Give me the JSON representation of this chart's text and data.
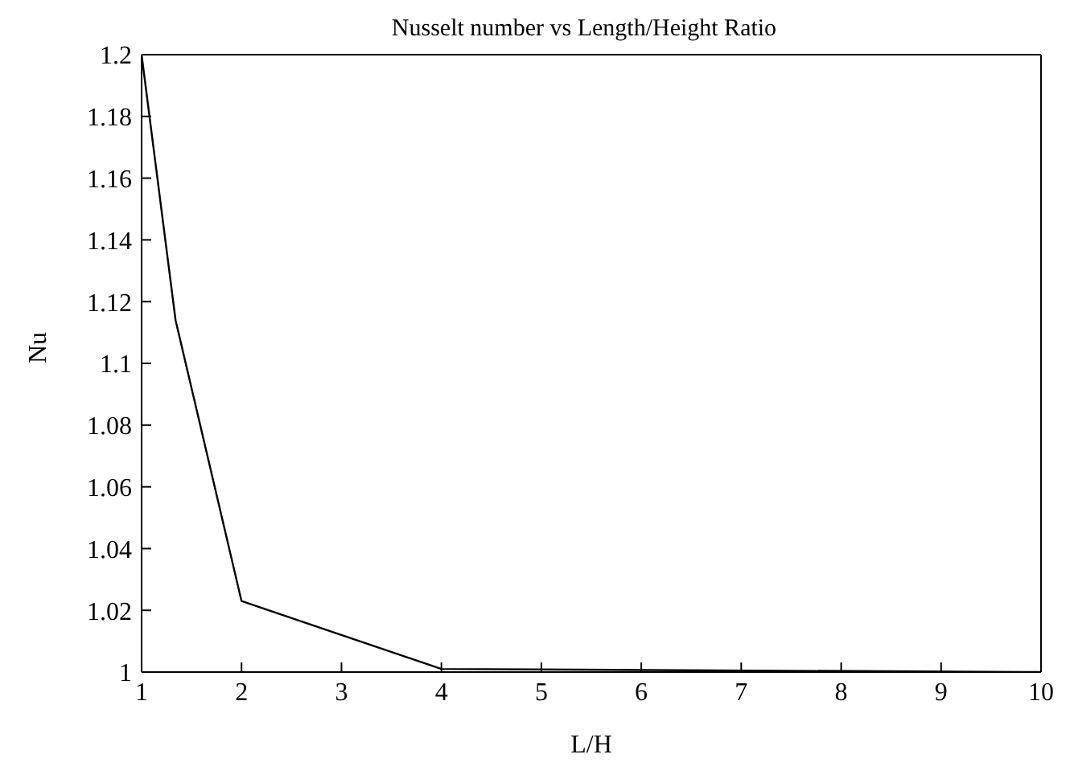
{
  "chart_data": {
    "type": "line",
    "title": "Nusselt number vs Length/Height Ratio",
    "xlabel": "L/H",
    "ylabel": "Nu",
    "x": [
      1,
      1.34,
      2,
      4,
      10
    ],
    "series": [
      {
        "color": "#000000",
        "values": [
          1.2,
          1.114,
          1.023,
          1.001,
          1.0
        ]
      }
    ],
    "xlim": [
      1,
      10
    ],
    "xticks": [
      1,
      2,
      3,
      4,
      5,
      6,
      7,
      8,
      9,
      10
    ],
    "ylim": [
      1,
      1.2
    ],
    "yticks": [
      1,
      1.02,
      1.04,
      1.06,
      1.08,
      1.1,
      1.12,
      1.14,
      1.16,
      1.18,
      1.2
    ],
    "grid": false,
    "legend": false,
    "marker": "none",
    "line_style": "solid"
  }
}
